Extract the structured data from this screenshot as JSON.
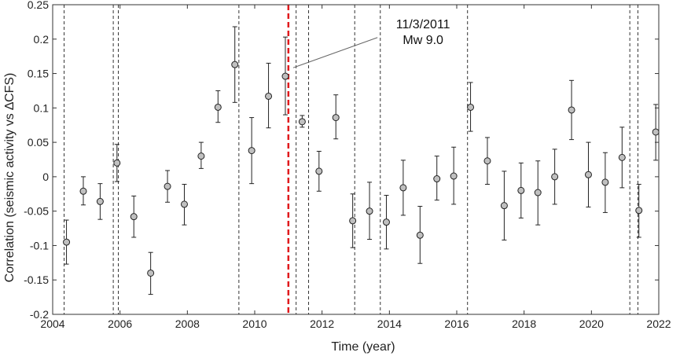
{
  "chart_data": {
    "type": "scatter",
    "title": "",
    "xlabel": "Time (year)",
    "ylabel": "Correlation (seismic activity vs ∆CFS)",
    "xlim": [
      2004,
      2022
    ],
    "ylim": [
      -0.2,
      0.25
    ],
    "x_ticks": [
      2004,
      2006,
      2008,
      2010,
      2012,
      2014,
      2016,
      2018,
      2020,
      2022
    ],
    "y_ticks": [
      -0.2,
      -0.15,
      -0.1,
      -0.05,
      0,
      0.05,
      0.1,
      0.15,
      0.2,
      0.25
    ],
    "x_tick_labels": [
      "2004",
      "2006",
      "2008",
      "2010",
      "2012",
      "2014",
      "2016",
      "2018",
      "2020",
      "2022"
    ],
    "y_tick_labels": [
      "-0.2",
      "-0.15",
      "-0.1",
      "-0.05",
      "0",
      "0.05",
      "0.1",
      "0.15",
      "0.2",
      "0.25"
    ],
    "grid": false,
    "marker_color": "#c0c0c0",
    "marker_edge_color": "#222222",
    "points": [
      {
        "x": 2004.41,
        "y": -0.095,
        "err_low": -0.127,
        "err_high": -0.063
      },
      {
        "x": 2004.91,
        "y": -0.021,
        "err_low": -0.041,
        "err_high": 0.0
      },
      {
        "x": 2005.41,
        "y": -0.036,
        "err_low": -0.062,
        "err_high": -0.01
      },
      {
        "x": 2005.91,
        "y": 0.02,
        "err_low": -0.007,
        "err_high": 0.047
      },
      {
        "x": 2006.41,
        "y": -0.058,
        "err_low": -0.088,
        "err_high": -0.028
      },
      {
        "x": 2006.91,
        "y": -0.14,
        "err_low": -0.171,
        "err_high": -0.11
      },
      {
        "x": 2007.41,
        "y": -0.014,
        "err_low": -0.037,
        "err_high": 0.009
      },
      {
        "x": 2007.91,
        "y": -0.04,
        "err_low": -0.07,
        "err_high": -0.011
      },
      {
        "x": 2008.41,
        "y": 0.03,
        "err_low": 0.012,
        "err_high": 0.05
      },
      {
        "x": 2008.91,
        "y": 0.101,
        "err_low": 0.079,
        "err_high": 0.125
      },
      {
        "x": 2009.41,
        "y": 0.163,
        "err_low": 0.108,
        "err_high": 0.218
      },
      {
        "x": 2009.91,
        "y": 0.038,
        "err_low": -0.01,
        "err_high": 0.086
      },
      {
        "x": 2010.41,
        "y": 0.117,
        "err_low": 0.071,
        "err_high": 0.165
      },
      {
        "x": 2010.91,
        "y": 0.146,
        "err_low": 0.09,
        "err_high": 0.203
      },
      {
        "x": 2011.41,
        "y": 0.08,
        "err_low": 0.072,
        "err_high": 0.089
      },
      {
        "x": 2011.91,
        "y": 0.008,
        "err_low": -0.021,
        "err_high": 0.037
      },
      {
        "x": 2012.41,
        "y": 0.086,
        "err_low": 0.055,
        "err_high": 0.119
      },
      {
        "x": 2012.91,
        "y": -0.064,
        "err_low": -0.103,
        "err_high": -0.025
      },
      {
        "x": 2013.41,
        "y": -0.05,
        "err_low": -0.091,
        "err_high": -0.008
      },
      {
        "x": 2013.91,
        "y": -0.066,
        "err_low": -0.105,
        "err_high": -0.027
      },
      {
        "x": 2014.41,
        "y": -0.016,
        "err_low": -0.056,
        "err_high": 0.024
      },
      {
        "x": 2014.91,
        "y": -0.085,
        "err_low": -0.126,
        "err_high": -0.043
      },
      {
        "x": 2015.41,
        "y": -0.003,
        "err_low": -0.034,
        "err_high": 0.03
      },
      {
        "x": 2015.91,
        "y": 0.001,
        "err_low": -0.04,
        "err_high": 0.043
      },
      {
        "x": 2016.41,
        "y": 0.101,
        "err_low": 0.066,
        "err_high": 0.137
      },
      {
        "x": 2016.91,
        "y": 0.023,
        "err_low": -0.011,
        "err_high": 0.057
      },
      {
        "x": 2017.41,
        "y": -0.042,
        "err_low": -0.092,
        "err_high": 0.008
      },
      {
        "x": 2017.91,
        "y": -0.02,
        "err_low": -0.06,
        "err_high": 0.02
      },
      {
        "x": 2018.41,
        "y": -0.023,
        "err_low": -0.07,
        "err_high": 0.023
      },
      {
        "x": 2018.91,
        "y": 0.0,
        "err_low": -0.04,
        "err_high": 0.04
      },
      {
        "x": 2019.41,
        "y": 0.097,
        "err_low": 0.054,
        "err_high": 0.14
      },
      {
        "x": 2019.91,
        "y": 0.003,
        "err_low": -0.044,
        "err_high": 0.05
      },
      {
        "x": 2020.41,
        "y": -0.008,
        "err_low": -0.052,
        "err_high": 0.035
      },
      {
        "x": 2020.91,
        "y": 0.028,
        "err_low": -0.016,
        "err_high": 0.072
      },
      {
        "x": 2021.41,
        "y": -0.049,
        "err_low": -0.088,
        "err_high": -0.011
      },
      {
        "x": 2021.91,
        "y": 0.065,
        "err_low": 0.024,
        "err_high": 0.105
      }
    ],
    "vertical_lines": [
      {
        "x": 2004.34,
        "style": "dashed",
        "color": "#333333"
      },
      {
        "x": 2005.8,
        "style": "dashed",
        "color": "#333333"
      },
      {
        "x": 2005.95,
        "style": "dashed",
        "color": "#333333"
      },
      {
        "x": 2009.53,
        "style": "dashed",
        "color": "#333333"
      },
      {
        "x": 2011.23,
        "style": "dashed",
        "color": "#333333"
      },
      {
        "x": 2011.6,
        "style": "dashed",
        "color": "#333333"
      },
      {
        "x": 2012.97,
        "style": "dashed",
        "color": "#333333"
      },
      {
        "x": 2013.73,
        "style": "dashed",
        "color": "#333333"
      },
      {
        "x": 2016.32,
        "style": "dashed",
        "color": "#333333"
      },
      {
        "x": 2021.14,
        "style": "dashed",
        "color": "#333333"
      },
      {
        "x": 2021.38,
        "style": "dashed",
        "color": "#333333"
      }
    ],
    "highlight_line": {
      "x": 2011.0,
      "style": "dashed",
      "color": "#e0191c"
    },
    "annotation": {
      "line1": "11/3/2011",
      "line2": "Mw 9.0",
      "point_x": 2011.05,
      "point_y": 0.163,
      "text_x": 2015.0,
      "text_y": 0.2
    }
  }
}
